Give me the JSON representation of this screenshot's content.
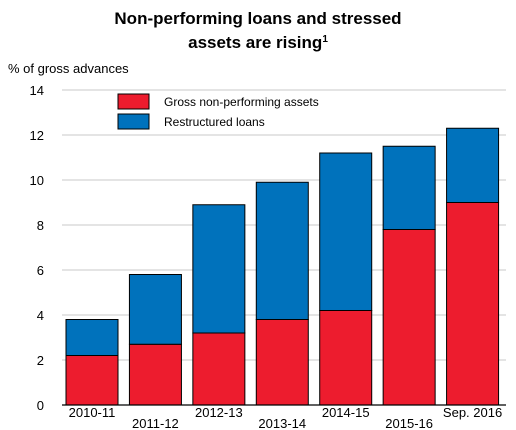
{
  "chart_data": {
    "type": "bar",
    "stacked": true,
    "title_line1": "Non-performing loans and stressed",
    "title_line2": "assets are rising",
    "title_footnote": "1",
    "ylabel": "% of gross advances",
    "ylim": [
      0,
      14
    ],
    "yticks": [
      0,
      2,
      4,
      6,
      8,
      10,
      12,
      14
    ],
    "grid": true,
    "legend_position": "top-left",
    "categories": [
      "2010-11",
      "2011-12",
      "2012-13",
      "2013-14",
      "2014-15",
      "2015-16",
      "Sep. 2016"
    ],
    "series": [
      {
        "name": "Gross non-performing assets",
        "color": "#ed1c2e",
        "values": [
          2.2,
          2.7,
          3.2,
          3.8,
          4.2,
          7.8,
          9.0
        ]
      },
      {
        "name": "Restructured loans",
        "color": "#0072bc",
        "values": [
          1.6,
          3.1,
          5.7,
          6.1,
          7.0,
          3.7,
          3.3
        ]
      }
    ]
  }
}
